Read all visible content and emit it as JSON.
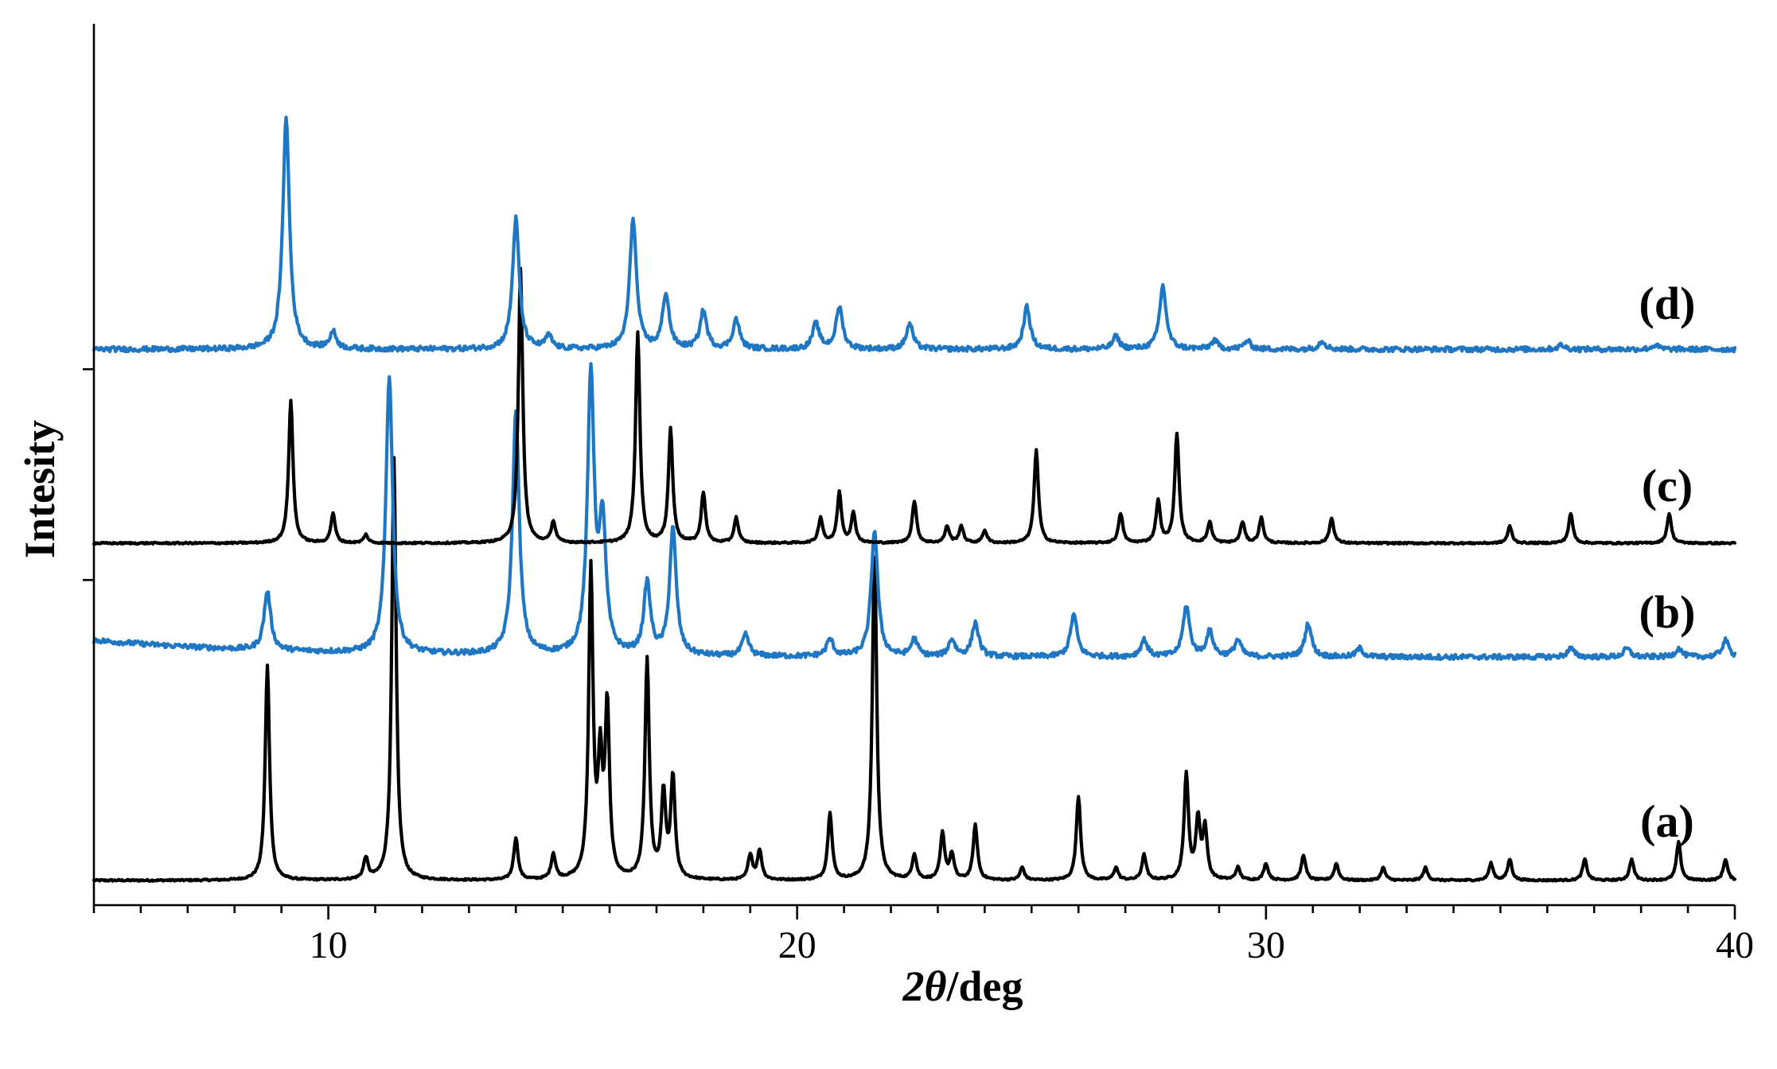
{
  "chart_data": {
    "type": "line",
    "title": "",
    "xlabel_prefix": "2",
    "xlabel_theta": "θ",
    "xlabel_suffix": "/deg",
    "ylabel": "Intesity",
    "xlim": [
      5,
      40
    ],
    "xticks": [
      10,
      20,
      30,
      40
    ],
    "x_minor_step": 1,
    "y_ticks_unlabeled": true,
    "grid": false,
    "legend": "none",
    "series_labels_inline": true,
    "series": [
      {
        "label": "(a)",
        "color": "#000000",
        "baseline": 0.0,
        "peaks": [
          {
            "x": 8.7,
            "h": 0.255
          },
          {
            "x": 10.8,
            "h": 0.025
          },
          {
            "x": 11.4,
            "h": 0.5
          },
          {
            "x": 14.0,
            "h": 0.05
          },
          {
            "x": 14.8,
            "h": 0.03
          },
          {
            "x": 15.6,
            "h": 0.365
          },
          {
            "x": 15.8,
            "h": 0.13
          },
          {
            "x": 15.95,
            "h": 0.2
          },
          {
            "x": 16.8,
            "h": 0.26
          },
          {
            "x": 17.15,
            "h": 0.1
          },
          {
            "x": 17.35,
            "h": 0.12
          },
          {
            "x": 19.0,
            "h": 0.03
          },
          {
            "x": 19.2,
            "h": 0.035
          },
          {
            "x": 20.7,
            "h": 0.08
          },
          {
            "x": 21.65,
            "h": 0.395
          },
          {
            "x": 22.5,
            "h": 0.03
          },
          {
            "x": 23.1,
            "h": 0.055
          },
          {
            "x": 23.3,
            "h": 0.03
          },
          {
            "x": 23.8,
            "h": 0.065
          },
          {
            "x": 24.8,
            "h": 0.015
          },
          {
            "x": 26.0,
            "h": 0.1
          },
          {
            "x": 26.8,
            "h": 0.015
          },
          {
            "x": 27.4,
            "h": 0.03
          },
          {
            "x": 28.3,
            "h": 0.125
          },
          {
            "x": 28.55,
            "h": 0.07
          },
          {
            "x": 28.7,
            "h": 0.06
          },
          {
            "x": 29.4,
            "h": 0.015
          },
          {
            "x": 30.0,
            "h": 0.02
          },
          {
            "x": 30.8,
            "h": 0.03
          },
          {
            "x": 31.5,
            "h": 0.02
          },
          {
            "x": 32.5,
            "h": 0.015
          },
          {
            "x": 33.4,
            "h": 0.015
          },
          {
            "x": 34.8,
            "h": 0.02
          },
          {
            "x": 35.2,
            "h": 0.025
          },
          {
            "x": 36.8,
            "h": 0.025
          },
          {
            "x": 37.8,
            "h": 0.025
          },
          {
            "x": 38.8,
            "h": 0.045
          },
          {
            "x": 39.8,
            "h": 0.025
          }
        ]
      },
      {
        "label": "(b)",
        "color": "#1f77c4",
        "baseline": 0.265,
        "peaks": [
          {
            "x": 8.7,
            "h": 0.07
          },
          {
            "x": 11.3,
            "h": 0.33
          },
          {
            "x": 14.0,
            "h": 0.29
          },
          {
            "x": 15.6,
            "h": 0.33
          },
          {
            "x": 15.85,
            "h": 0.15
          },
          {
            "x": 16.8,
            "h": 0.085
          },
          {
            "x": 17.35,
            "h": 0.15
          },
          {
            "x": 18.9,
            "h": 0.025
          },
          {
            "x": 20.7,
            "h": 0.02
          },
          {
            "x": 21.65,
            "h": 0.15
          },
          {
            "x": 22.5,
            "h": 0.02
          },
          {
            "x": 23.3,
            "h": 0.02
          },
          {
            "x": 23.8,
            "h": 0.04
          },
          {
            "x": 25.9,
            "h": 0.05
          },
          {
            "x": 27.4,
            "h": 0.02
          },
          {
            "x": 28.3,
            "h": 0.06
          },
          {
            "x": 28.8,
            "h": 0.03
          },
          {
            "x": 29.4,
            "h": 0.02
          },
          {
            "x": 30.9,
            "h": 0.04
          },
          {
            "x": 32.0,
            "h": 0.01
          },
          {
            "x": 36.5,
            "h": 0.01
          },
          {
            "x": 37.7,
            "h": 0.01
          },
          {
            "x": 38.8,
            "h": 0.01
          },
          {
            "x": 39.8,
            "h": 0.02
          }
        ]
      },
      {
        "label": "(c)",
        "color": "#000000",
        "baseline": 0.4,
        "peaks": [
          {
            "x": 9.2,
            "h": 0.17
          },
          {
            "x": 10.1,
            "h": 0.035
          },
          {
            "x": 10.8,
            "h": 0.01
          },
          {
            "x": 14.1,
            "h": 0.325
          },
          {
            "x": 14.8,
            "h": 0.025
          },
          {
            "x": 16.6,
            "h": 0.25
          },
          {
            "x": 17.3,
            "h": 0.135
          },
          {
            "x": 18.0,
            "h": 0.06
          },
          {
            "x": 18.7,
            "h": 0.03
          },
          {
            "x": 20.5,
            "h": 0.03
          },
          {
            "x": 20.9,
            "h": 0.06
          },
          {
            "x": 21.2,
            "h": 0.035
          },
          {
            "x": 22.5,
            "h": 0.05
          },
          {
            "x": 23.2,
            "h": 0.02
          },
          {
            "x": 23.5,
            "h": 0.02
          },
          {
            "x": 24.0,
            "h": 0.015
          },
          {
            "x": 25.1,
            "h": 0.11
          },
          {
            "x": 26.9,
            "h": 0.035
          },
          {
            "x": 27.7,
            "h": 0.05
          },
          {
            "x": 28.1,
            "h": 0.13
          },
          {
            "x": 28.8,
            "h": 0.025
          },
          {
            "x": 29.5,
            "h": 0.025
          },
          {
            "x": 29.9,
            "h": 0.03
          },
          {
            "x": 31.4,
            "h": 0.03
          },
          {
            "x": 35.2,
            "h": 0.02
          },
          {
            "x": 36.5,
            "h": 0.035
          },
          {
            "x": 38.6,
            "h": 0.035
          }
        ]
      },
      {
        "label": "(d)",
        "color": "#1f77c4",
        "baseline": 0.63,
        "peaks": [
          {
            "x": 9.1,
            "h": 0.275
          },
          {
            "x": 10.1,
            "h": 0.02
          },
          {
            "x": 14.0,
            "h": 0.155
          },
          {
            "x": 14.7,
            "h": 0.015
          },
          {
            "x": 16.5,
            "h": 0.155
          },
          {
            "x": 17.2,
            "h": 0.065
          },
          {
            "x": 18.0,
            "h": 0.045
          },
          {
            "x": 18.7,
            "h": 0.035
          },
          {
            "x": 20.4,
            "h": 0.03
          },
          {
            "x": 20.9,
            "h": 0.05
          },
          {
            "x": 22.4,
            "h": 0.03
          },
          {
            "x": 24.9,
            "h": 0.05
          },
          {
            "x": 26.8,
            "h": 0.015
          },
          {
            "x": 27.8,
            "h": 0.075
          },
          {
            "x": 28.9,
            "h": 0.01
          },
          {
            "x": 29.6,
            "h": 0.01
          },
          {
            "x": 31.2,
            "h": 0.01
          },
          {
            "x": 36.3,
            "h": 0.005
          },
          {
            "x": 38.3,
            "h": 0.005
          }
        ]
      }
    ]
  }
}
